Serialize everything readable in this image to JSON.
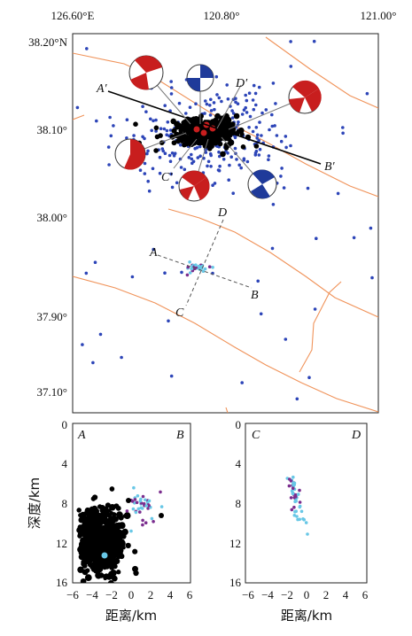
{
  "map": {
    "lon_labels": [
      "126.60°E",
      "120.80°",
      "121.00°"
    ],
    "lat_labels": [
      "38.20°N",
      "38.10°",
      "38.00°",
      "37.90°",
      "37.10°"
    ],
    "profile_labels": {
      "a_prime": "A′",
      "b_prime": "B′",
      "c_prime": "C′",
      "d_prime": "D′",
      "a": "A",
      "b": "B",
      "c": "C",
      "d": "D"
    },
    "colors": {
      "fault": "#f0935a",
      "blue_event": "#2d45b8",
      "black_event": "#000000",
      "beachball_red": "#c81e1e",
      "beachball_blue": "#1f3a9a",
      "cyan_event": "#68c7e6",
      "purple_event": "#7b2d8e"
    }
  },
  "sections": {
    "left": {
      "left_label": "A",
      "right_label": "B"
    },
    "right": {
      "left_label": "C",
      "right_label": "D"
    },
    "x_ticks": [
      "−6",
      "−4",
      "−2",
      "0",
      "2",
      "4",
      "6"
    ],
    "y_ticks": [
      "0",
      "4",
      "8",
      "12",
      "16"
    ],
    "xlabel": "距离/km",
    "ylabel": "深度/km"
  }
}
